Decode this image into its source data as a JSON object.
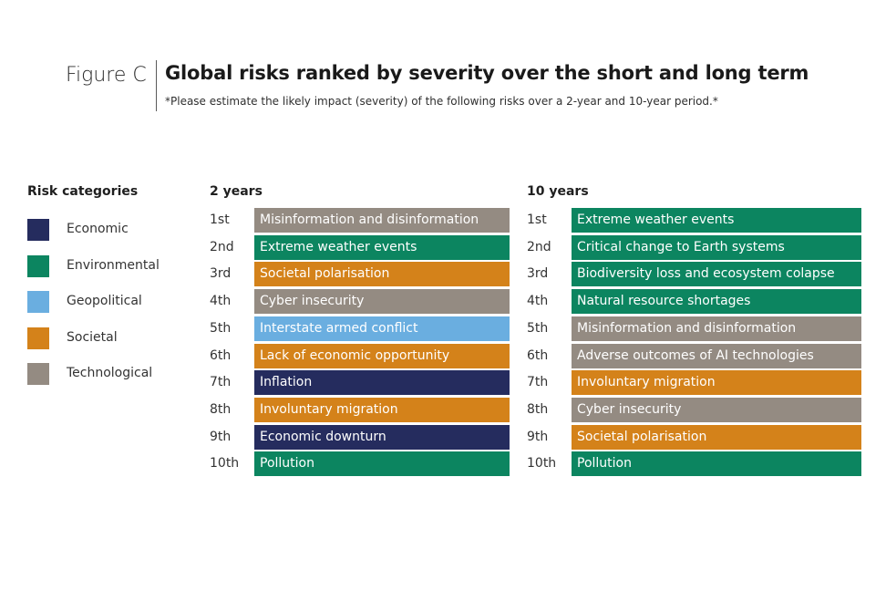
{
  "header": {
    "figure_label": "Figure C",
    "title": "Global risks ranked by severity over the short and long term",
    "subtitle": "*Please estimate the likely impact (severity) of the following risks over a 2-year and 10-year period.*"
  },
  "colors": {
    "Economic": "#252c5e",
    "Environmental": "#0c8560",
    "Geopolitical": "#6aaee0",
    "Societal": "#d4821a",
    "Technological": "#948b82"
  },
  "legend": {
    "title": "Risk categories",
    "items": [
      {
        "label": "Economic",
        "category": "Economic"
      },
      {
        "label": "Environmental",
        "category": "Environmental"
      },
      {
        "label": "Geopolitical",
        "category": "Geopolitical"
      },
      {
        "label": "Societal",
        "category": "Societal"
      },
      {
        "label": "Technological",
        "category": "Technological"
      }
    ]
  },
  "chart_data": {
    "type": "table",
    "title": "Global risks ranked by severity over the short and long term",
    "panels": [
      {
        "title": "2 years",
        "rows": [
          {
            "rank": "1st",
            "risk": "Misinformation and disinformation",
            "category": "Technological"
          },
          {
            "rank": "2nd",
            "risk": "Extreme weather events",
            "category": "Environmental"
          },
          {
            "rank": "3rd",
            "risk": "Societal polarisation",
            "category": "Societal"
          },
          {
            "rank": "4th",
            "risk": "Cyber insecurity",
            "category": "Technological"
          },
          {
            "rank": "5th",
            "risk": "Interstate armed conflict",
            "category": "Geopolitical"
          },
          {
            "rank": "6th",
            "risk": "Lack of economic opportunity",
            "category": "Societal"
          },
          {
            "rank": "7th",
            "risk": "Inflation",
            "category": "Economic"
          },
          {
            "rank": "8th",
            "risk": "Involuntary migration",
            "category": "Societal"
          },
          {
            "rank": "9th",
            "risk": "Economic downturn",
            "category": "Economic"
          },
          {
            "rank": "10th",
            "risk": "Pollution",
            "category": "Environmental"
          }
        ]
      },
      {
        "title": "10 years",
        "rows": [
          {
            "rank": "1st",
            "risk": "Extreme weather events",
            "category": "Environmental"
          },
          {
            "rank": "2nd",
            "risk": "Critical change to Earth systems",
            "category": "Environmental"
          },
          {
            "rank": "3rd",
            "risk": "Biodiversity loss and ecosystem colapse",
            "category": "Environmental"
          },
          {
            "rank": "4th",
            "risk": "Natural resource shortages",
            "category": "Environmental"
          },
          {
            "rank": "5th",
            "risk": "Misinformation and disinformation",
            "category": "Technological"
          },
          {
            "rank": "6th",
            "risk": "Adverse outcomes of AI technologies",
            "category": "Technological"
          },
          {
            "rank": "7th",
            "risk": "Involuntary migration",
            "category": "Societal"
          },
          {
            "rank": "8th",
            "risk": "Cyber insecurity",
            "category": "Technological"
          },
          {
            "rank": "9th",
            "risk": "Societal polarisation",
            "category": "Societal"
          },
          {
            "rank": "10th",
            "risk": "Pollution",
            "category": "Environmental"
          }
        ]
      }
    ]
  }
}
